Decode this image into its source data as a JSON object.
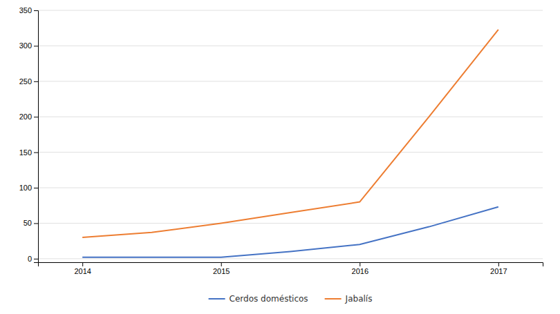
{
  "chart_data": {
    "type": "line",
    "x": [
      2014,
      2014.5,
      2015,
      2015.5,
      2016,
      2016.5,
      2017
    ],
    "series": [
      {
        "name": "Cerdos domésticos",
        "color": "#4472C4",
        "values": [
          2,
          2,
          2,
          10,
          20,
          45,
          73
        ]
      },
      {
        "name": "Jabalís",
        "color": "#ED7D31",
        "values": [
          30,
          37,
          50,
          65,
          80,
          200,
          323
        ]
      }
    ],
    "xlim": [
      2013.68,
      2017.32
    ],
    "xticks": [
      2014,
      2015,
      2016,
      2017
    ],
    "ylim": [
      -5,
      350
    ],
    "yticks": [
      0,
      50,
      100,
      150,
      200,
      250,
      300,
      350
    ],
    "grid": true,
    "legend": "bottom"
  }
}
